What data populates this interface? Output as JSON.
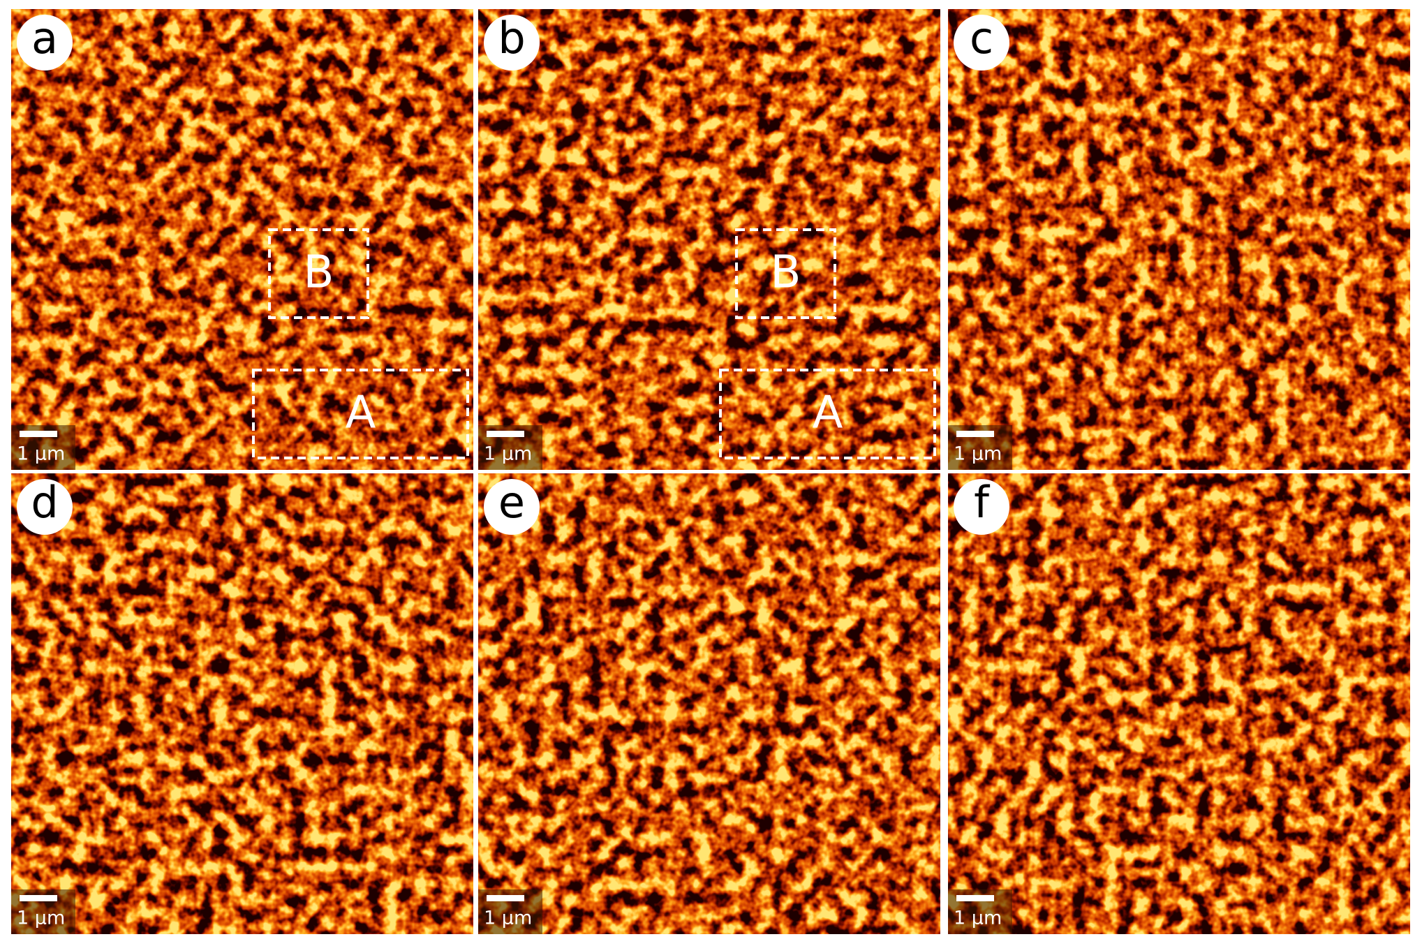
{
  "panels": [
    {
      "label": "a",
      "scale_bar": "1 μm",
      "regions": [
        "B",
        "A"
      ]
    },
    {
      "label": "b",
      "scale_bar": "1 μm",
      "regions": [
        "B",
        "A"
      ]
    },
    {
      "label": "c",
      "scale_bar": "1 μm"
    },
    {
      "label": "d",
      "scale_bar": "1 μm"
    },
    {
      "label": "e",
      "scale_bar": "1 μm"
    },
    {
      "label": "f",
      "scale_bar": "1 μm"
    }
  ]
}
